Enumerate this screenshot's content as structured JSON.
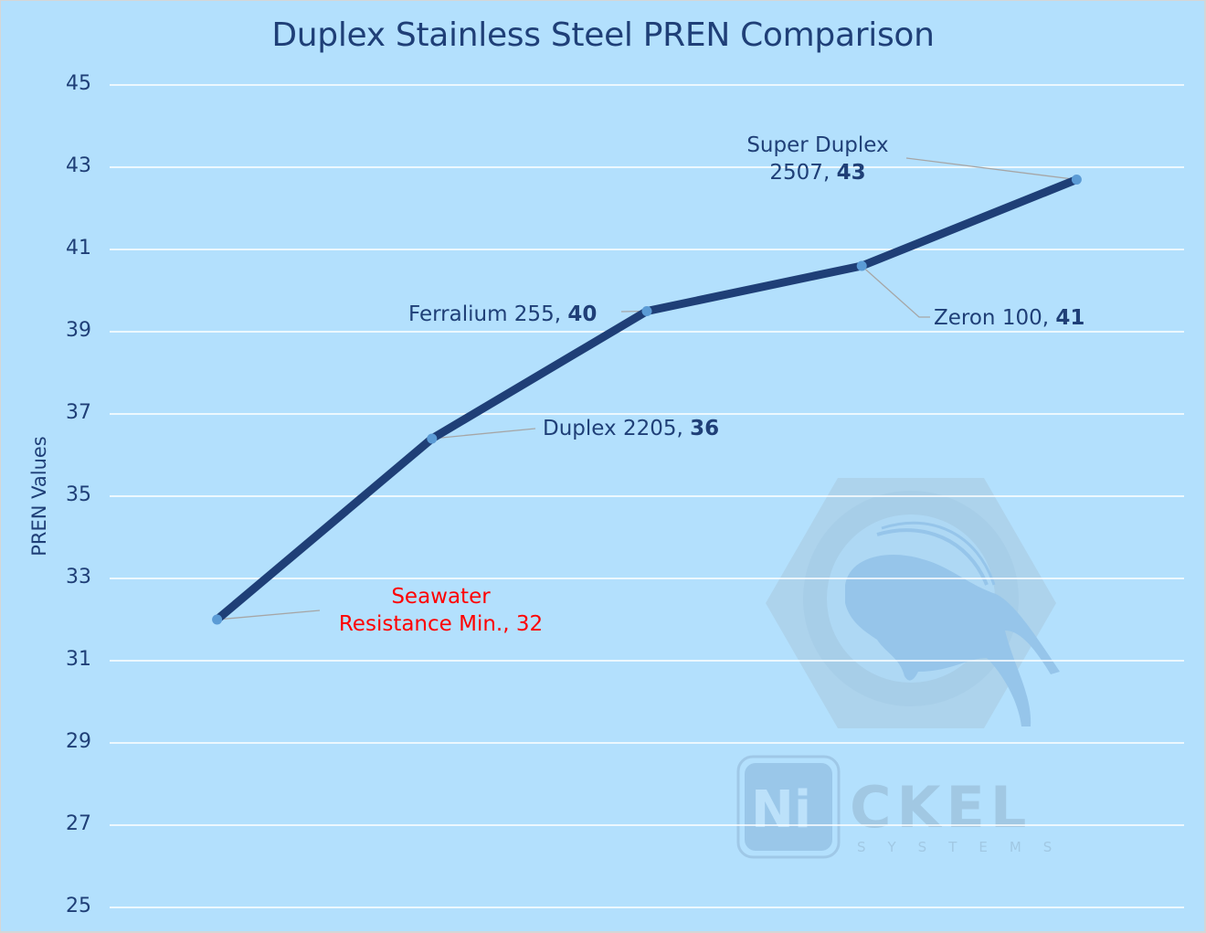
{
  "chart_data": {
    "type": "line",
    "title": "Duplex Stainless Steel PREN Comparison",
    "xlabel": "",
    "ylabel": "PREN Values",
    "ylim": [
      25,
      45
    ],
    "yticks": [
      45,
      43,
      41,
      39,
      37,
      35,
      33,
      31,
      29,
      27,
      25
    ],
    "grid": true,
    "legend": "none",
    "categories": [
      "Seawater Resistance Min.",
      "Duplex 2205",
      "Ferralium 255",
      "Zeron 100",
      "Super Duplex 2507"
    ],
    "series": [
      {
        "name": "PREN",
        "color": "#1f3f77",
        "marker_color": "#5b9bd5",
        "values": [
          32,
          36.4,
          39.5,
          40.6,
          42.7
        ],
        "labeled_values": [
          32,
          36,
          40,
          41,
          43
        ]
      }
    ],
    "annotations": [
      {
        "name_line1": "Seawater",
        "name_line2": "Resistance Min.,",
        "value": "32",
        "color": "#ff0000"
      },
      {
        "name": "Duplex 2205,",
        "value": "36",
        "color": "#1f3f77"
      },
      {
        "name": "Ferralium 255,",
        "value": "40",
        "color": "#1f3f77"
      },
      {
        "name": "Zeron 100,",
        "value": "41",
        "color": "#1f3f77"
      },
      {
        "name_line1": "Super Duplex",
        "name_line2": "2507,",
        "value": "43",
        "color": "#1f3f77"
      }
    ]
  },
  "colors": {
    "background": "#b3e0fd",
    "gridline": "#ffffff",
    "line": "#1f3f77",
    "marker": "#5b9bd5",
    "leader": "#a6a6a6",
    "text": "#1f3f77",
    "highlight": "#ff0000"
  },
  "watermark": {
    "brand_text": "CKEL",
    "brand_prefix": "Ni",
    "subtitle": "S Y S T E M S",
    "icon": "hex-nut-bison-logo-icon"
  }
}
